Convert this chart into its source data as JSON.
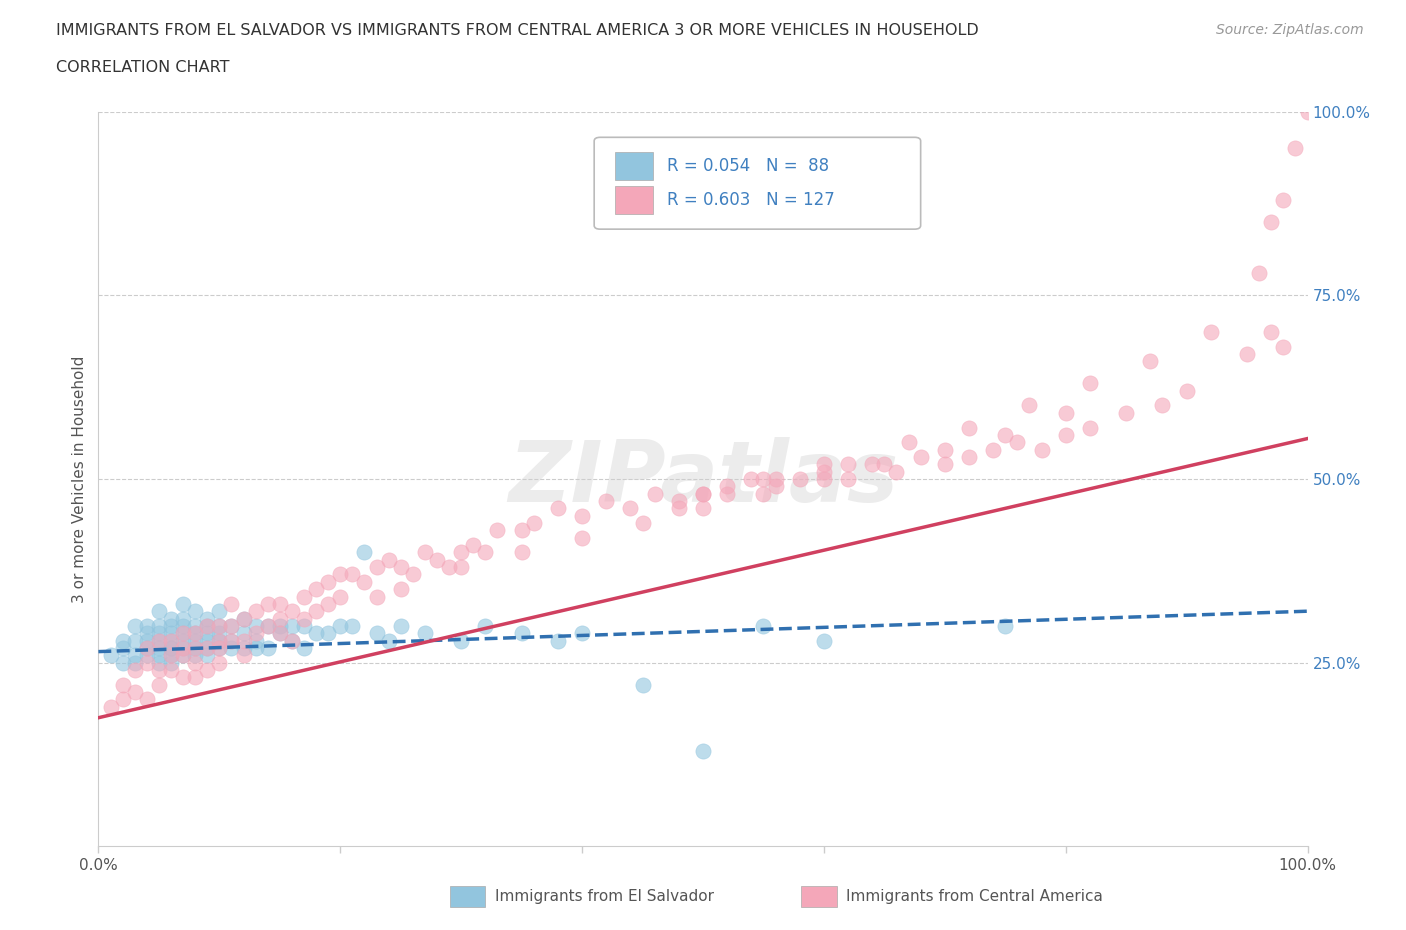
{
  "title_line1": "IMMIGRANTS FROM EL SALVADOR VS IMMIGRANTS FROM CENTRAL AMERICA 3 OR MORE VEHICLES IN HOUSEHOLD",
  "title_line2": "CORRELATION CHART",
  "source": "Source: ZipAtlas.com",
  "ylabel": "3 or more Vehicles in Household",
  "xmin": 0.0,
  "xmax": 1.0,
  "ymin": 0.0,
  "ymax": 1.0,
  "color_blue": "#92C5DE",
  "color_pink": "#F4A7B9",
  "line_color_blue": "#3070B0",
  "line_color_pink": "#D04060",
  "background_color": "#FFFFFF",
  "legend_label1": "Immigrants from El Salvador",
  "legend_label2": "Immigrants from Central America",
  "title_color": "#333333",
  "axis_label_color": "#555555",
  "tick_label_color_right": "#4080C0",
  "grid_color": "#CCCCCC",
  "watermark_color": "#D0D0D0",
  "watermark_alpha": 0.4,
  "blue_trend_x": [
    0.0,
    1.0
  ],
  "blue_trend_y": [
    0.265,
    0.32
  ],
  "pink_trend_x": [
    0.0,
    1.0
  ],
  "pink_trend_y": [
    0.175,
    0.555
  ],
  "blue_scatter_x": [
    0.01,
    0.02,
    0.02,
    0.02,
    0.03,
    0.03,
    0.03,
    0.03,
    0.04,
    0.04,
    0.04,
    0.04,
    0.04,
    0.05,
    0.05,
    0.05,
    0.05,
    0.05,
    0.05,
    0.05,
    0.06,
    0.06,
    0.06,
    0.06,
    0.06,
    0.06,
    0.06,
    0.06,
    0.07,
    0.07,
    0.07,
    0.07,
    0.07,
    0.07,
    0.07,
    0.08,
    0.08,
    0.08,
    0.08,
    0.08,
    0.08,
    0.09,
    0.09,
    0.09,
    0.09,
    0.09,
    0.09,
    0.1,
    0.1,
    0.1,
    0.1,
    0.1,
    0.11,
    0.11,
    0.11,
    0.12,
    0.12,
    0.12,
    0.13,
    0.13,
    0.13,
    0.14,
    0.14,
    0.15,
    0.15,
    0.16,
    0.16,
    0.17,
    0.17,
    0.18,
    0.19,
    0.2,
    0.21,
    0.22,
    0.23,
    0.24,
    0.25,
    0.27,
    0.3,
    0.32,
    0.35,
    0.38,
    0.4,
    0.45,
    0.5,
    0.55,
    0.6,
    0.75
  ],
  "blue_scatter_y": [
    0.26,
    0.27,
    0.25,
    0.28,
    0.26,
    0.28,
    0.25,
    0.3,
    0.27,
    0.26,
    0.29,
    0.28,
    0.3,
    0.26,
    0.28,
    0.27,
    0.29,
    0.3,
    0.25,
    0.32,
    0.27,
    0.28,
    0.26,
    0.3,
    0.29,
    0.31,
    0.27,
    0.25,
    0.28,
    0.3,
    0.27,
    0.29,
    0.31,
    0.26,
    0.33,
    0.28,
    0.3,
    0.27,
    0.29,
    0.32,
    0.26,
    0.28,
    0.3,
    0.27,
    0.29,
    0.31,
    0.26,
    0.28,
    0.3,
    0.27,
    0.29,
    0.32,
    0.28,
    0.3,
    0.27,
    0.29,
    0.31,
    0.27,
    0.28,
    0.3,
    0.27,
    0.3,
    0.27,
    0.3,
    0.29,
    0.3,
    0.28,
    0.3,
    0.27,
    0.29,
    0.29,
    0.3,
    0.3,
    0.4,
    0.29,
    0.28,
    0.3,
    0.29,
    0.28,
    0.3,
    0.29,
    0.28,
    0.29,
    0.22,
    0.13,
    0.3,
    0.28,
    0.3
  ],
  "pink_scatter_x": [
    0.01,
    0.02,
    0.02,
    0.03,
    0.03,
    0.04,
    0.04,
    0.04,
    0.05,
    0.05,
    0.05,
    0.06,
    0.06,
    0.06,
    0.07,
    0.07,
    0.07,
    0.07,
    0.08,
    0.08,
    0.08,
    0.08,
    0.09,
    0.09,
    0.09,
    0.1,
    0.1,
    0.1,
    0.1,
    0.11,
    0.11,
    0.11,
    0.12,
    0.12,
    0.12,
    0.13,
    0.13,
    0.14,
    0.14,
    0.15,
    0.15,
    0.15,
    0.16,
    0.16,
    0.17,
    0.17,
    0.18,
    0.18,
    0.19,
    0.19,
    0.2,
    0.2,
    0.21,
    0.22,
    0.23,
    0.23,
    0.24,
    0.25,
    0.26,
    0.27,
    0.28,
    0.29,
    0.3,
    0.31,
    0.32,
    0.33,
    0.35,
    0.36,
    0.38,
    0.4,
    0.42,
    0.44,
    0.46,
    0.48,
    0.5,
    0.52,
    0.54,
    0.56,
    0.58,
    0.6,
    0.62,
    0.64,
    0.66,
    0.68,
    0.7,
    0.72,
    0.74,
    0.76,
    0.78,
    0.8,
    0.82,
    0.85,
    0.88,
    0.9,
    0.95,
    0.97,
    0.98,
    0.5,
    0.55,
    0.6,
    0.25,
    0.3,
    0.35,
    0.4,
    0.45,
    0.5,
    0.55,
    0.6,
    0.65,
    0.7,
    0.75,
    0.8,
    0.48,
    0.52,
    0.56,
    0.62,
    0.67,
    0.72,
    0.77,
    0.82,
    0.87,
    0.92,
    0.96,
    0.97,
    0.98,
    0.99,
    1.0
  ],
  "pink_scatter_y": [
    0.19,
    0.2,
    0.22,
    0.24,
    0.21,
    0.27,
    0.25,
    0.2,
    0.28,
    0.24,
    0.22,
    0.26,
    0.28,
    0.24,
    0.27,
    0.26,
    0.23,
    0.29,
    0.27,
    0.25,
    0.29,
    0.23,
    0.27,
    0.3,
    0.24,
    0.28,
    0.3,
    0.25,
    0.27,
    0.3,
    0.33,
    0.28,
    0.31,
    0.28,
    0.26,
    0.32,
    0.29,
    0.33,
    0.3,
    0.31,
    0.33,
    0.29,
    0.32,
    0.28,
    0.34,
    0.31,
    0.35,
    0.32,
    0.36,
    0.33,
    0.37,
    0.34,
    0.37,
    0.36,
    0.38,
    0.34,
    0.39,
    0.38,
    0.37,
    0.4,
    0.39,
    0.38,
    0.4,
    0.41,
    0.4,
    0.43,
    0.43,
    0.44,
    0.46,
    0.45,
    0.47,
    0.46,
    0.48,
    0.47,
    0.48,
    0.49,
    0.5,
    0.49,
    0.5,
    0.51,
    0.5,
    0.52,
    0.51,
    0.53,
    0.52,
    0.53,
    0.54,
    0.55,
    0.54,
    0.56,
    0.57,
    0.59,
    0.6,
    0.62,
    0.67,
    0.7,
    0.68,
    0.48,
    0.5,
    0.52,
    0.35,
    0.38,
    0.4,
    0.42,
    0.44,
    0.46,
    0.48,
    0.5,
    0.52,
    0.54,
    0.56,
    0.59,
    0.46,
    0.48,
    0.5,
    0.52,
    0.55,
    0.57,
    0.6,
    0.63,
    0.66,
    0.7,
    0.78,
    0.85,
    0.88,
    0.95,
    1.0
  ]
}
